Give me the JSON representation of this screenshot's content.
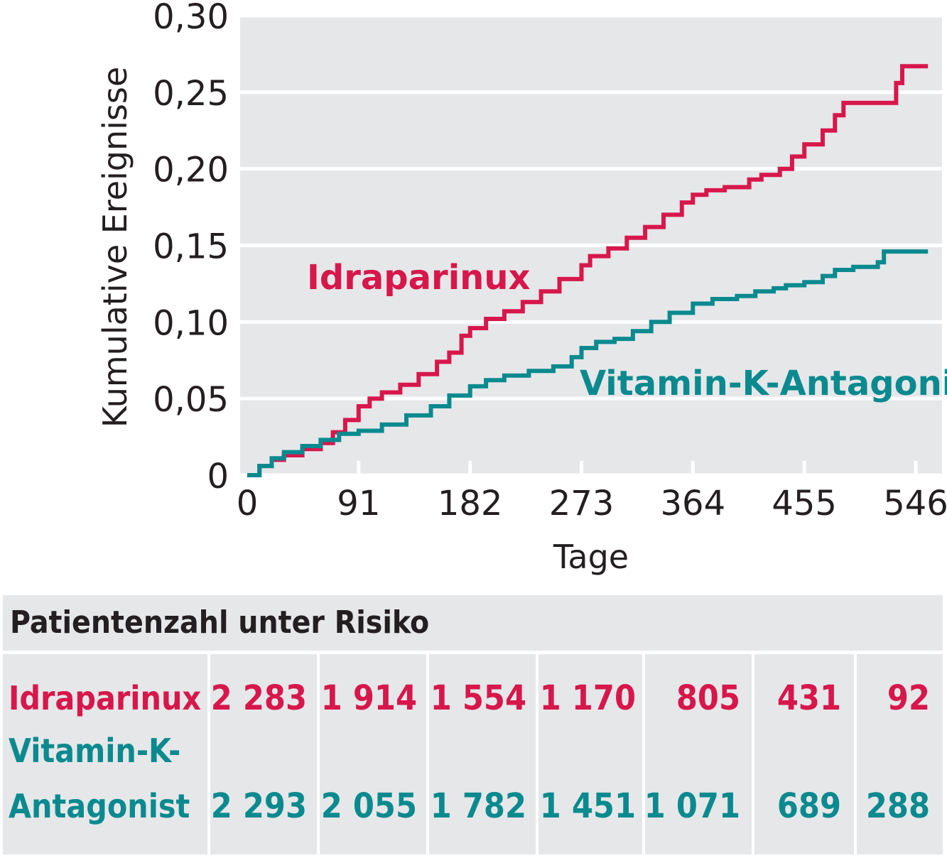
{
  "chart_data": {
    "type": "line",
    "xlabel": "Tage",
    "ylabel": "Kumulative Ereignisse",
    "xlim": [
      0,
      560
    ],
    "ylim": [
      0,
      0.3
    ],
    "x_ticks": [
      0,
      91,
      182,
      273,
      364,
      455,
      546
    ],
    "x_tick_labels": [
      "0",
      "91",
      "182",
      "273",
      "364",
      "455",
      "546"
    ],
    "y_ticks": [
      0,
      0.05,
      0.1,
      0.15,
      0.2,
      0.25,
      0.3
    ],
    "y_tick_labels": [
      "0",
      "0,05",
      "0,10",
      "0,15",
      "0,20",
      "0,25",
      "0,30"
    ],
    "grid": true,
    "step": true,
    "series": [
      {
        "name": "Idraparinux",
        "color": "#d7174b",
        "points": [
          [
            0,
            0
          ],
          [
            10,
            0.006
          ],
          [
            20,
            0.01
          ],
          [
            30,
            0.013
          ],
          [
            45,
            0.017
          ],
          [
            60,
            0.021
          ],
          [
            70,
            0.028
          ],
          [
            80,
            0.036
          ],
          [
            91,
            0.045
          ],
          [
            100,
            0.05
          ],
          [
            110,
            0.054
          ],
          [
            125,
            0.059
          ],
          [
            140,
            0.066
          ],
          [
            155,
            0.074
          ],
          [
            165,
            0.08
          ],
          [
            175,
            0.091
          ],
          [
            182,
            0.096
          ],
          [
            195,
            0.102
          ],
          [
            210,
            0.107
          ],
          [
            225,
            0.113
          ],
          [
            240,
            0.12
          ],
          [
            255,
            0.128
          ],
          [
            273,
            0.137
          ],
          [
            280,
            0.143
          ],
          [
            295,
            0.148
          ],
          [
            310,
            0.155
          ],
          [
            325,
            0.162
          ],
          [
            340,
            0.17
          ],
          [
            355,
            0.178
          ],
          [
            364,
            0.183
          ],
          [
            375,
            0.186
          ],
          [
            390,
            0.188
          ],
          [
            410,
            0.193
          ],
          [
            420,
            0.196
          ],
          [
            435,
            0.2
          ],
          [
            445,
            0.208
          ],
          [
            455,
            0.216
          ],
          [
            470,
            0.225
          ],
          [
            480,
            0.235
          ],
          [
            487,
            0.243
          ],
          [
            510,
            0.243
          ],
          [
            525,
            0.243
          ],
          [
            530,
            0.256
          ],
          [
            535,
            0.267
          ],
          [
            556,
            0.267
          ]
        ]
      },
      {
        "name": "Vitamin-K-Antagonist",
        "color": "#0a8a8f",
        "points": [
          [
            0,
            0
          ],
          [
            10,
            0.006
          ],
          [
            20,
            0.011
          ],
          [
            30,
            0.015
          ],
          [
            45,
            0.019
          ],
          [
            60,
            0.023
          ],
          [
            75,
            0.027
          ],
          [
            91,
            0.029
          ],
          [
            110,
            0.033
          ],
          [
            130,
            0.039
          ],
          [
            150,
            0.045
          ],
          [
            165,
            0.052
          ],
          [
            182,
            0.058
          ],
          [
            195,
            0.062
          ],
          [
            210,
            0.065
          ],
          [
            230,
            0.068
          ],
          [
            250,
            0.071
          ],
          [
            265,
            0.077
          ],
          [
            273,
            0.083
          ],
          [
            285,
            0.087
          ],
          [
            300,
            0.089
          ],
          [
            315,
            0.094
          ],
          [
            330,
            0.1
          ],
          [
            345,
            0.106
          ],
          [
            364,
            0.112
          ],
          [
            380,
            0.115
          ],
          [
            400,
            0.117
          ],
          [
            415,
            0.12
          ],
          [
            430,
            0.122
          ],
          [
            440,
            0.124
          ],
          [
            455,
            0.126
          ],
          [
            470,
            0.13
          ],
          [
            480,
            0.134
          ],
          [
            495,
            0.136
          ],
          [
            515,
            0.139
          ],
          [
            520,
            0.146
          ],
          [
            556,
            0.146
          ]
        ]
      }
    ]
  },
  "labels": {
    "series_a": "Idraparinux",
    "series_b": "Vitamin-K-Antagonist"
  },
  "risk_table": {
    "title": "Patientenzahl unter Risiko",
    "row_a": {
      "label": "Idraparinux",
      "values": [
        "2 283",
        "1 914",
        "1 554",
        "1 170",
        "805",
        "431",
        "92"
      ]
    },
    "row_b": {
      "label_line1": "Vitamin-K-",
      "label_line2": "Antagonist",
      "values": [
        "2 293",
        "2 055",
        "1 782",
        "1 451",
        "1 071",
        "689",
        "288"
      ]
    }
  }
}
